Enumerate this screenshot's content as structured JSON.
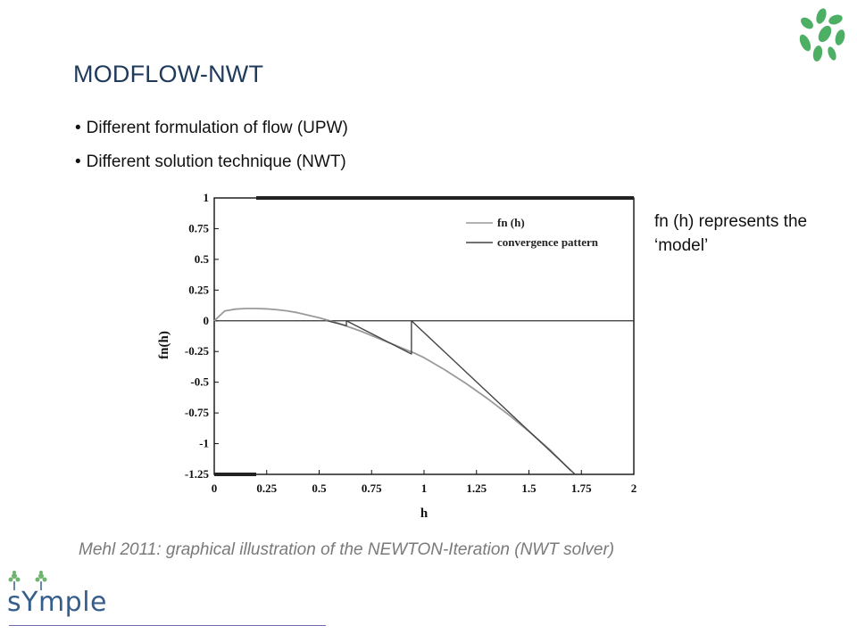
{
  "slide": {
    "title": "MODFLOW-NWT",
    "bullets": [
      "Different formulation of flow (UPW)",
      "Different solution technique (NWT)"
    ],
    "side_note": "fn (h) represents the ‘model’",
    "caption": "Mehl 2011: graphical illustration of the NEWTON-Iteration (NWT solver)",
    "logo_text": "sYmple"
  },
  "colors": {
    "title": "#1f3a5a",
    "fn_curve": "#9a9a9a",
    "convergence": "#444444",
    "leaf_green": "#4caf63",
    "logo_blue": "#355e8c"
  },
  "chart_data": {
    "type": "line",
    "xlabel": "h",
    "ylabel": "fn(h)",
    "xlim": [
      0,
      2
    ],
    "ylim": [
      -1.25,
      1
    ],
    "xticks": [
      "0",
      "0.25",
      "0.5",
      "0.75",
      "1",
      "1.25",
      "1.5",
      "1.75",
      "2"
    ],
    "xtick_values": [
      0,
      0.25,
      0.5,
      0.75,
      1,
      1.25,
      1.5,
      1.75,
      2
    ],
    "yticks": [
      "1",
      "0.75",
      "0.5",
      "0.25",
      "0",
      "-0.25",
      "-0.5",
      "-0.75",
      "-1",
      "-1.25"
    ],
    "ytick_values": [
      1,
      0.75,
      0.5,
      0.25,
      0,
      -0.25,
      -0.5,
      -0.75,
      -1,
      -1.25
    ],
    "legend_position": "top-right",
    "series": [
      {
        "name": "fn (h)",
        "color": "#9a9a9a",
        "x": [
          0,
          0.05,
          0.1,
          0.15,
          0.2,
          0.25,
          0.3,
          0.35,
          0.4,
          0.45,
          0.5,
          0.55,
          0.6,
          0.65,
          0.7,
          0.75,
          0.8,
          0.85,
          0.9,
          0.95,
          1.0,
          1.1,
          1.2,
          1.3,
          1.4,
          1.5,
          1.6,
          1.7
        ],
        "y": [
          0,
          0.08,
          0.095,
          0.1,
          0.1,
          0.097,
          0.09,
          0.08,
          0.065,
          0.045,
          0.025,
          0.0,
          -0.025,
          -0.055,
          -0.085,
          -0.12,
          -0.155,
          -0.19,
          -0.225,
          -0.26,
          -0.3,
          -0.4,
          -0.51,
          -0.63,
          -0.76,
          -0.9,
          -1.05,
          -1.22
        ]
      },
      {
        "name": "convergence pattern",
        "color": "#444444",
        "x": [
          1.72,
          0.94,
          0.94,
          0.63,
          0.63,
          0.54
        ],
        "y": [
          -1.25,
          0,
          -0.27,
          0,
          -0.04,
          0
        ]
      }
    ],
    "annotations": [
      {
        "type": "thick-line",
        "y": 1,
        "x": [
          0.2,
          2
        ]
      },
      {
        "type": "thick-line",
        "y": -1.25,
        "x": [
          0,
          0.2
        ]
      },
      {
        "type": "reference-line",
        "y": 0,
        "x": [
          0,
          2
        ]
      }
    ]
  }
}
